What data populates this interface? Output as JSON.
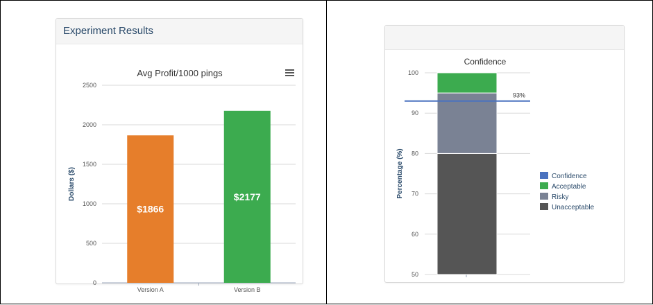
{
  "left_panel": {
    "title": "Experiment Results"
  },
  "chart_data": [
    {
      "type": "bar",
      "title": "Avg Profit/1000 pings",
      "categories": [
        "Version A",
        "Version B"
      ],
      "values": [
        1866,
        2177
      ],
      "data_labels": [
        "$1866",
        "$2177"
      ],
      "colors": [
        "#e67e2b",
        "#3cab4f"
      ],
      "ylabel": "Dollars ($)",
      "ylim": [
        0,
        2500
      ],
      "yticks": [
        0,
        500,
        1000,
        1500,
        2000,
        2500
      ],
      "grid": true
    },
    {
      "type": "bar",
      "stacked": true,
      "title": "Confidence",
      "ylabel": "Percentage (%)",
      "ylim": [
        50,
        100
      ],
      "yticks": [
        50,
        60,
        70,
        80,
        90,
        100
      ],
      "series": [
        {
          "name": "Unacceptable",
          "from": 50,
          "to": 80,
          "color": "#555555"
        },
        {
          "name": "Risky",
          "from": 80,
          "to": 95,
          "color": "#7a8294"
        },
        {
          "name": "Acceptable",
          "from": 95,
          "to": 100,
          "color": "#3cab4f"
        }
      ],
      "confidence_line": {
        "name": "Confidence",
        "value": 93,
        "label": "93%",
        "color": "#4a72bf"
      },
      "legend": [
        "Confidence",
        "Acceptable",
        "Risky",
        "Unacceptable"
      ],
      "legend_position": "right"
    }
  ]
}
